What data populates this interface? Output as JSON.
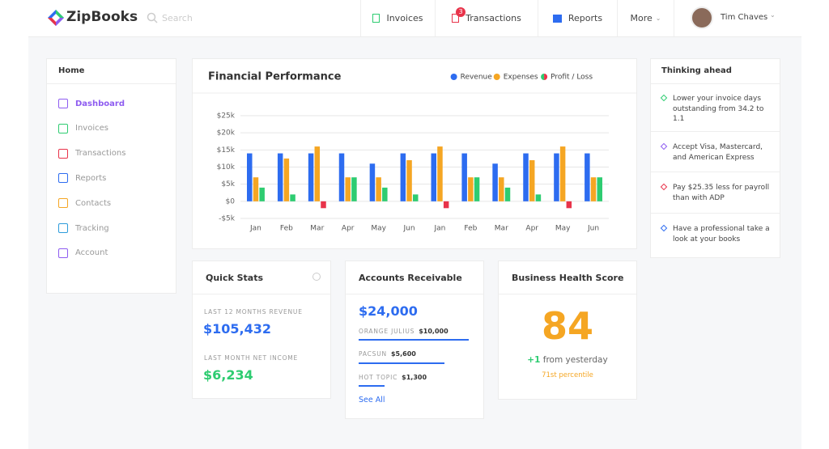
{
  "header": {
    "brand": "ZipBooks",
    "search_placeholder": "Search",
    "nav": [
      {
        "label": "Invoices"
      },
      {
        "label": "Transactions",
        "badge": "3"
      },
      {
        "label": "Reports"
      },
      {
        "label": "More"
      }
    ],
    "user": "Tim Chaves"
  },
  "sidebar": {
    "title": "Home",
    "items": [
      "Dashboard",
      "Invoices",
      "Transactions",
      "Reports",
      "Contacts",
      "Tracking",
      "Account"
    ]
  },
  "chart_data": {
    "type": "bar",
    "title": "Financial Performance",
    "categories": [
      "Jan",
      "Feb",
      "Mar",
      "Apr",
      "May",
      "Jun",
      "Jan",
      "Feb",
      "Mar",
      "Apr",
      "May",
      "Jun"
    ],
    "series": [
      {
        "name": "Revenue",
        "color": "#2d6cf0",
        "values": [
          14,
          14,
          14,
          14,
          11,
          14,
          14,
          14,
          11,
          14,
          14,
          14
        ]
      },
      {
        "name": "Expenses",
        "color": "#f5a623",
        "values": [
          7,
          12.5,
          16,
          7,
          7,
          12,
          16,
          7,
          7,
          12,
          16,
          7
        ]
      },
      {
        "name": "Profit / Loss",
        "color": "#2ecc71",
        "negative_color": "#e8334a",
        "values": [
          4,
          2,
          -2,
          7,
          4,
          2,
          -2,
          7,
          4,
          2,
          -2,
          7
        ]
      }
    ],
    "ylim": [
      -5,
      25
    ],
    "yticks": [
      {
        "value": -5,
        "label": "-$5k"
      },
      {
        "value": 0,
        "label": "$0"
      },
      {
        "value": 5,
        "label": "$5k"
      },
      {
        "value": 10,
        "label": "$10k"
      },
      {
        "value": 15,
        "label": "$15k"
      },
      {
        "value": 20,
        "label": "$20k"
      },
      {
        "value": 25,
        "label": "$25k"
      }
    ],
    "grid": true,
    "legend_position": "top-right"
  },
  "thinking_ahead": {
    "title": "Thinking ahead",
    "items": [
      "Lower your invoice days outstanding from 34.2 to 1.1",
      "Accept Visa, Mastercard, and American Express",
      "Pay $25.35 less for payroll than with ADP",
      "Have a professional take a look at your books"
    ]
  },
  "quick_stats": {
    "title": "Quick Stats",
    "stats": [
      {
        "label": "LAST 12 MONTHS REVENUE",
        "value": "$105,432"
      },
      {
        "label": "LAST MONTH NET INCOME",
        "value": "$6,234"
      }
    ]
  },
  "accounts_receivable": {
    "title": "Accounts Receivable",
    "total": "$24,000",
    "items": [
      {
        "name": "ORANGE JULIUS",
        "amount": "$10,000"
      },
      {
        "name": "PACSUN",
        "amount": "$5,600"
      },
      {
        "name": "HOT TOPIC",
        "amount": "$1,300"
      }
    ],
    "link": "See All"
  },
  "health": {
    "title": "Business Health Score",
    "score": "84",
    "change": "+1",
    "change_text": "from yesterday",
    "percentile": "71st percentile"
  }
}
